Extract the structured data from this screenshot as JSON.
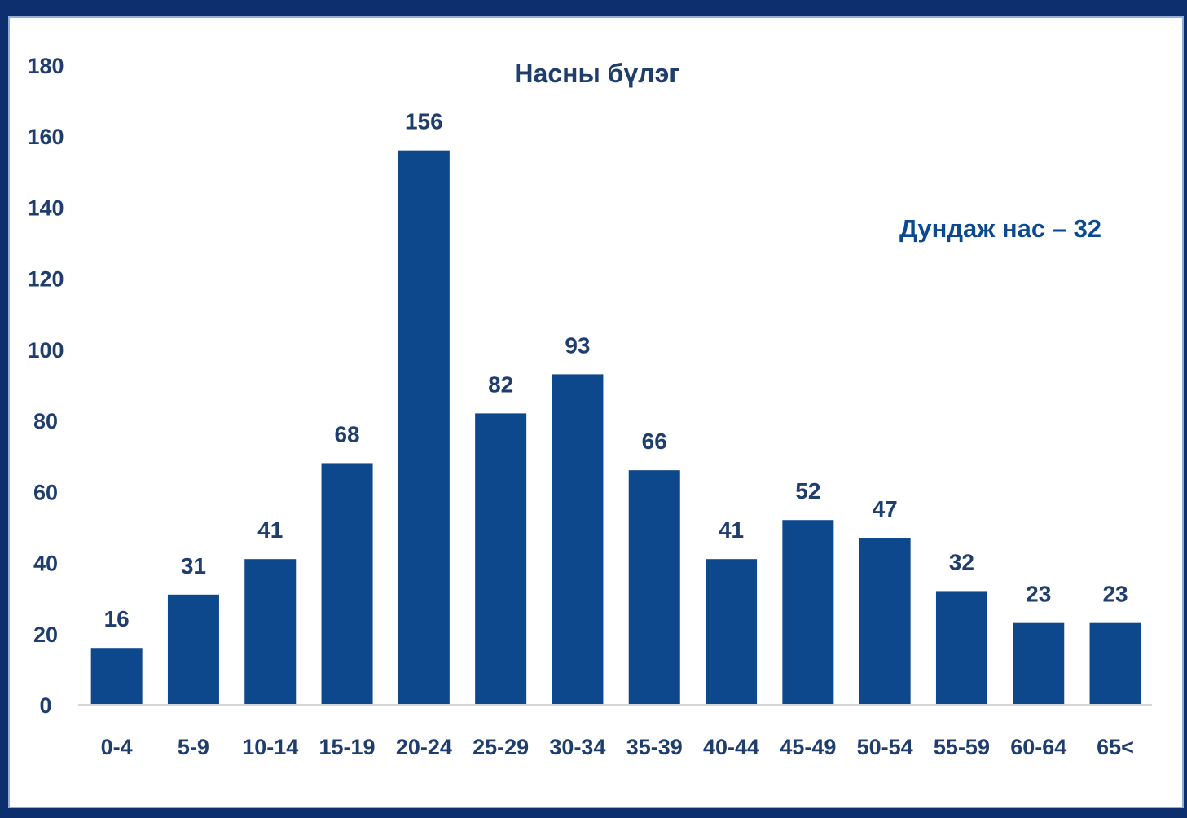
{
  "chart_data": {
    "type": "bar",
    "title": "Насны бүлэг",
    "annotation": "Дундаж нас – 32",
    "categories": [
      "0-4",
      "5-9",
      "10-14",
      "15-19",
      "20-24",
      "25-29",
      "30-34",
      "35-39",
      "40-44",
      "45-49",
      "50-54",
      "55-59",
      "60-64",
      "65<"
    ],
    "values": [
      16,
      31,
      41,
      68,
      156,
      82,
      93,
      66,
      41,
      52,
      47,
      32,
      23,
      23
    ],
    "yticks": [
      0,
      20,
      40,
      60,
      80,
      100,
      120,
      140,
      160,
      180
    ],
    "ylim": [
      0,
      180
    ],
    "grid": false,
    "legend": "none",
    "bar_color": "#0d478c",
    "xlabel": "",
    "ylabel": ""
  }
}
